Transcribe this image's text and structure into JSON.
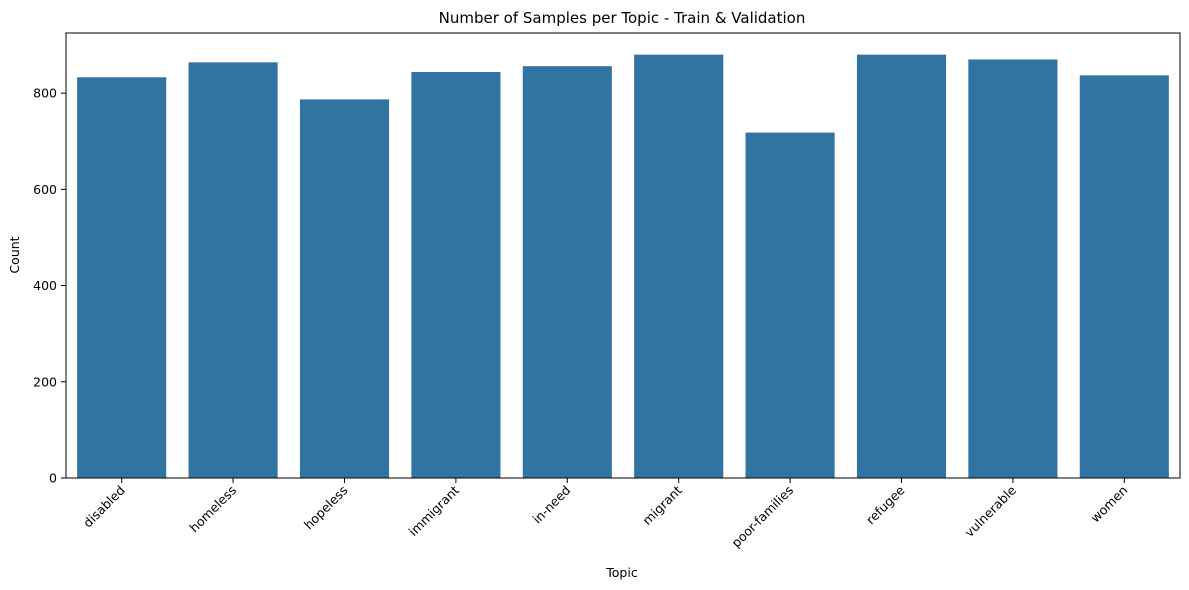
{
  "chart_data": {
    "type": "bar",
    "title": "Number of Samples per Topic - Train & Validation",
    "xlabel": "Topic",
    "ylabel": "Count",
    "categories": [
      "disabled",
      "homeless",
      "hopeless",
      "immigrant",
      "in-need",
      "migrant",
      "poor-families",
      "refugee",
      "vulnerable",
      "women"
    ],
    "values": [
      833,
      864,
      787,
      844,
      856,
      880,
      718,
      880,
      870,
      837
    ],
    "ylim": [
      0,
      925
    ],
    "yticks": [
      0,
      200,
      400,
      600,
      800
    ],
    "bar_color": "#3274a1",
    "grid": false,
    "legend": "none"
  }
}
